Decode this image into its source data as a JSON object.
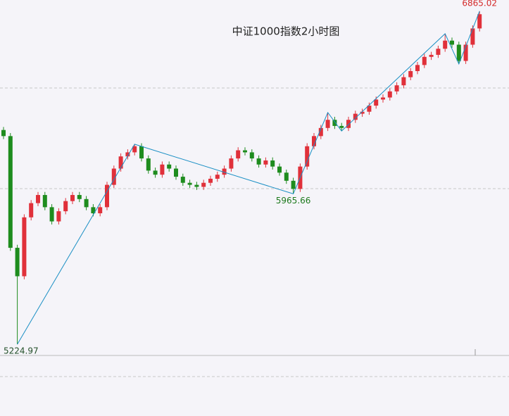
{
  "chart_data": {
    "type": "candlestick",
    "title": "中证1000指数2小时图",
    "ylim": [
      5170,
      6920
    ],
    "up_color": "#e0303a",
    "down_color": "#1e8c1e",
    "open": [
      6280,
      6250,
      5700,
      5560,
      5850,
      5920,
      5960,
      5900,
      5830,
      5880,
      5930,
      5960,
      5940,
      5900,
      5870,
      5900,
      6010,
      6090,
      6150,
      6170,
      6200,
      6140,
      6080,
      6060,
      6110,
      6090,
      6050,
      6020,
      6010,
      6000,
      6020,
      6040,
      6060,
      6090,
      6140,
      6180,
      6170,
      6140,
      6110,
      6130,
      6100,
      6070,
      6030,
      5990,
      6100,
      6200,
      6250,
      6290,
      6330,
      6300,
      6290,
      6330,
      6360,
      6370,
      6400,
      6430,
      6440,
      6470,
      6500,
      6540,
      6570,
      6600,
      6640,
      6650,
      6680,
      6720,
      6700,
      6620,
      6700,
      6780
    ],
    "high": [
      6295,
      6265,
      5715,
      5865,
      5935,
      5975,
      5975,
      5915,
      5895,
      5945,
      5975,
      5975,
      5955,
      5915,
      5915,
      6025,
      6105,
      6165,
      6185,
      6210,
      6215,
      6155,
      6095,
      6125,
      6125,
      6105,
      6065,
      6035,
      6025,
      6035,
      6055,
      6075,
      6105,
      6155,
      6195,
      6195,
      6185,
      6155,
      6145,
      6145,
      6115,
      6085,
      6045,
      6115,
      6215,
      6265,
      6305,
      6366,
      6345,
      6315,
      6345,
      6375,
      6385,
      6415,
      6445,
      6455,
      6485,
      6515,
      6555,
      6585,
      6615,
      6655,
      6665,
      6695,
      6754,
      6735,
      6715,
      6715,
      6795,
      6865.02
    ],
    "low": [
      6235,
      5685,
      5224.97,
      5545,
      5835,
      5905,
      5885,
      5815,
      5815,
      5865,
      5915,
      5925,
      5885,
      5855,
      5855,
      5885,
      5995,
      6075,
      6135,
      6155,
      6125,
      6065,
      6045,
      6045,
      6075,
      6035,
      6005,
      5995,
      5985,
      5985,
      6005,
      6025,
      6045,
      6075,
      6125,
      6155,
      6125,
      6095,
      6095,
      6085,
      6055,
      6015,
      5965.66,
      5975,
      6085,
      6185,
      6235,
      6275,
      6285,
      6275,
      6275,
      6315,
      6345,
      6355,
      6385,
      6415,
      6425,
      6455,
      6485,
      6525,
      6555,
      6585,
      6625,
      6635,
      6665,
      6685,
      6605,
      6605,
      6685,
      6765
    ],
    "close": [
      6250,
      5700,
      5560,
      5850,
      5920,
      5960,
      5900,
      5830,
      5880,
      5930,
      5960,
      5940,
      5900,
      5870,
      5900,
      6010,
      6090,
      6150,
      6170,
      6200,
      6140,
      6080,
      6060,
      6110,
      6090,
      6050,
      6020,
      6010,
      6000,
      6020,
      6040,
      6060,
      6090,
      6140,
      6180,
      6170,
      6140,
      6110,
      6130,
      6100,
      6070,
      6030,
      5990,
      6100,
      6200,
      6250,
      6290,
      6330,
      6300,
      6290,
      6330,
      6360,
      6370,
      6400,
      6430,
      6440,
      6470,
      6500,
      6540,
      6570,
      6600,
      6640,
      6650,
      6680,
      6720,
      6700,
      6620,
      6700,
      6780,
      6850
    ],
    "zigzag": {
      "color": "#1a8fc4",
      "x": [
        2,
        19,
        42,
        47,
        49,
        64,
        66,
        69
      ],
      "values": [
        5224.97,
        6210,
        5965.66,
        6366,
        6275,
        6754,
        6605,
        6865.02
      ]
    },
    "annotations": [
      {
        "text": "6865.02",
        "x": 69,
        "value": 6865.02,
        "color": "#d42a2a"
      },
      {
        "text": "5965.66",
        "x": 42,
        "value": 5965.66,
        "color": "#1e7a1e"
      },
      {
        "text": "5224.97",
        "x": 2,
        "value": 5224.97,
        "color": "#24502a"
      }
    ]
  }
}
